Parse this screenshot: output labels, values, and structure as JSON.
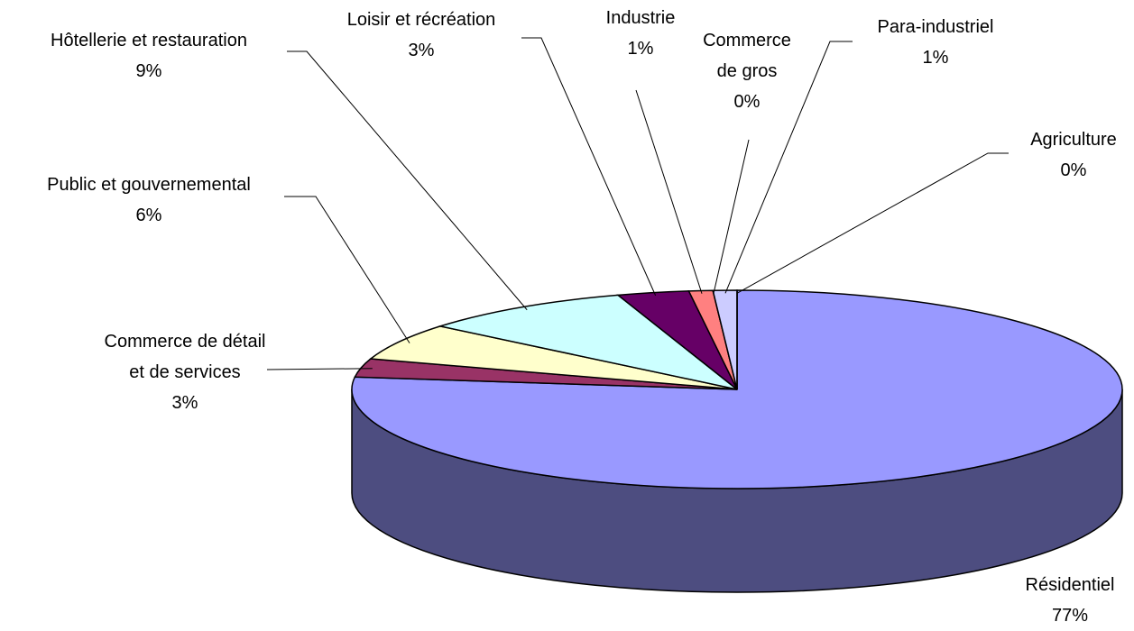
{
  "chart_data": {
    "type": "pie3d",
    "categories": [
      "Résidentiel",
      "Commerce de détail et de services",
      "Public et gouvernemental",
      "Hôtellerie et restauration",
      "Loisir et récréation",
      "Industrie",
      "Commerce de gros",
      "Para-industriel",
      "Agriculture"
    ],
    "values": [
      77,
      3,
      6,
      9,
      3,
      1,
      0,
      1,
      0
    ],
    "value_labels": [
      "77%",
      "3%",
      "6%",
      "9%",
      "3%",
      "1%",
      "0%",
      "1%",
      "0%"
    ],
    "colors": [
      "#9999ff",
      "#993366",
      "#ffffcc",
      "#ccffff",
      "#660066",
      "#ff8080",
      "#0066cc",
      "#ccccff",
      "#000080"
    ]
  }
}
